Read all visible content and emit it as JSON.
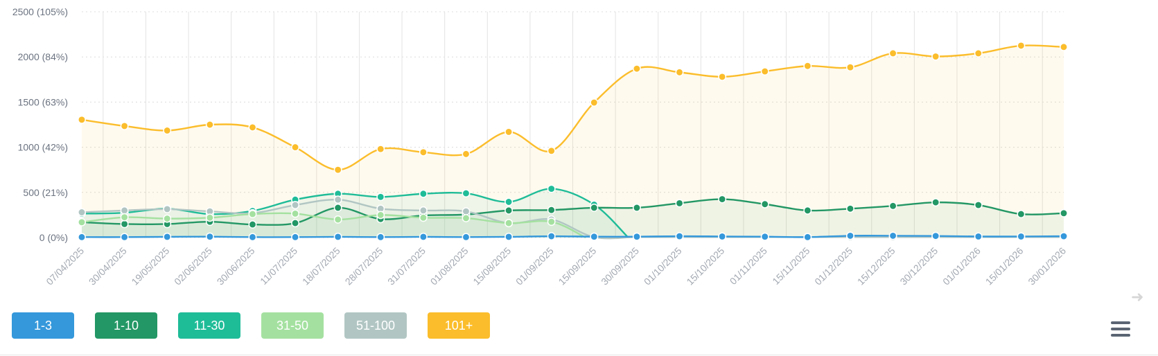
{
  "chart_data": {
    "type": "area",
    "x": [
      "07/04/2025",
      "30/04/2025",
      "19/05/2025",
      "02/06/2025",
      "30/06/2025",
      "11/07/2025",
      "18/07/2025",
      "28/07/2025",
      "31/07/2025",
      "01/08/2025",
      "15/08/2025",
      "01/09/2025",
      "15/09/2025",
      "30/09/2025",
      "01/10/2025",
      "15/10/2025",
      "01/11/2025",
      "15/11/2025",
      "01/12/2025",
      "15/12/2025",
      "30/12/2025",
      "01/01/2026",
      "15/01/2026",
      "30/01/2026"
    ],
    "ylim": [
      0,
      2500
    ],
    "yticks": [
      {
        "value": 0,
        "label": "0 (0%)"
      },
      {
        "value": 500,
        "label": "500 (21%)"
      },
      {
        "value": 1000,
        "label": "1000 (42%)"
      },
      {
        "value": 1500,
        "label": "1500 (63%)"
      },
      {
        "value": 2000,
        "label": "2000 (84%)"
      },
      {
        "value": 2500,
        "label": "2500 (105%)"
      }
    ],
    "grid": true,
    "legend_position": "bottom-left",
    "series": [
      {
        "name": "1-3",
        "color": "#3498db",
        "values": [
          5,
          5,
          8,
          10,
          5,
          5,
          8,
          5,
          8,
          5,
          8,
          15,
          10,
          10,
          15,
          12,
          10,
          5,
          20,
          20,
          18,
          12,
          12,
          15
        ]
      },
      {
        "name": "1-10",
        "color": "#239765",
        "values": [
          170,
          150,
          150,
          175,
          145,
          160,
          330,
          205,
          245,
          255,
          300,
          305,
          330,
          330,
          380,
          425,
          370,
          300,
          320,
          350,
          390,
          360,
          260,
          270
        ]
      },
      {
        "name": "11-30",
        "color": "#1fbc98",
        "values": [
          265,
          275,
          320,
          260,
          295,
          420,
          485,
          450,
          485,
          490,
          395,
          540,
          365,
          null,
          null,
          null,
          null,
          null,
          null,
          null,
          null,
          null,
          null,
          null
        ]
      },
      {
        "name": "31-50",
        "color": "#a4e1a0",
        "values": [
          170,
          225,
          210,
          220,
          260,
          265,
          200,
          250,
          220,
          215,
          160,
          175,
          null,
          null,
          null,
          null,
          null,
          null,
          null,
          null,
          null,
          null,
          null,
          null
        ]
      },
      {
        "name": "51-100",
        "color": "#b1c6c3",
        "values": [
          280,
          300,
          315,
          290,
          270,
          360,
          420,
          320,
          300,
          290,
          160,
          200,
          5,
          5,
          5,
          5,
          5,
          5,
          5,
          5,
          5,
          5,
          5,
          5
        ]
      },
      {
        "name": "101+",
        "color": "#fbbd2b",
        "values": [
          1305,
          1235,
          1185,
          1250,
          1220,
          1000,
          750,
          980,
          945,
          925,
          1170,
          960,
          1495,
          1870,
          1830,
          1780,
          1840,
          1900,
          1885,
          2040,
          2005,
          2040,
          2125,
          2110
        ]
      }
    ]
  },
  "legend": [
    {
      "label": "1-3",
      "color": "#3498db"
    },
    {
      "label": "1-10",
      "color": "#239765"
    },
    {
      "label": "11-30",
      "color": "#1fbc98"
    },
    {
      "label": "31-50",
      "color": "#a4e1a0"
    },
    {
      "label": "51-100",
      "color": "#b1c6c3"
    },
    {
      "label": "101+",
      "color": "#fbbd2b"
    }
  ],
  "controls": {
    "menu_icon": "hamburger-menu-icon",
    "next_icon": "arrow-right-icon"
  }
}
